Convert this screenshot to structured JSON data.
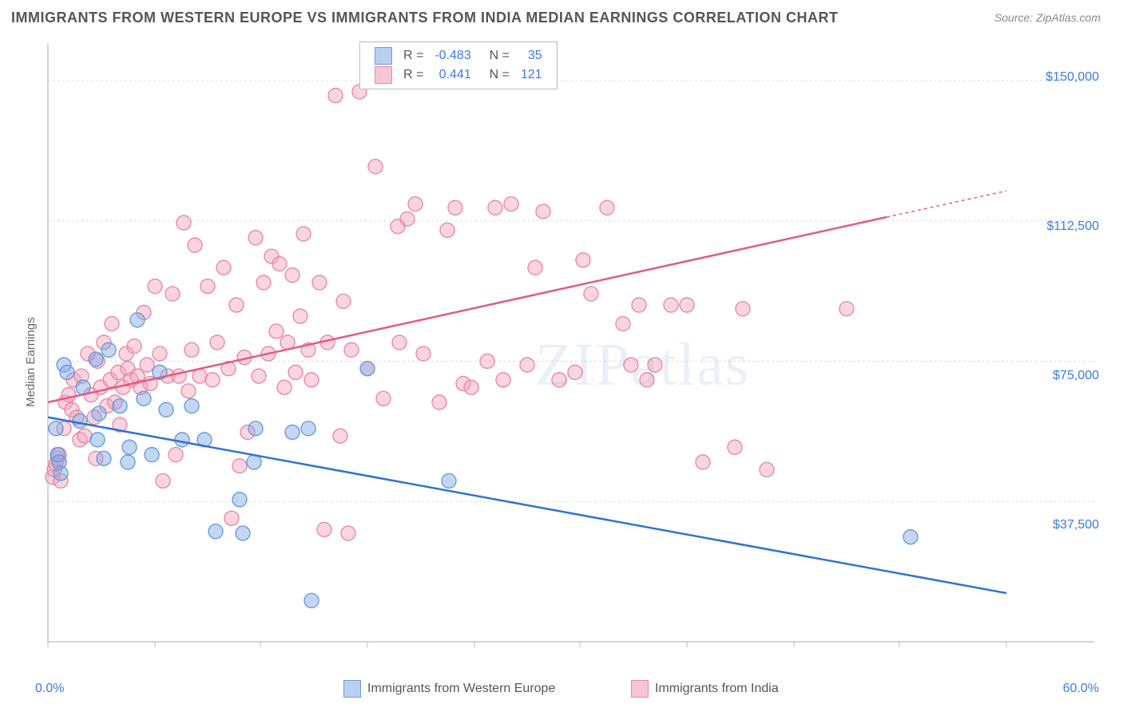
{
  "title": "IMMIGRANTS FROM WESTERN EUROPE VS IMMIGRANTS FROM INDIA MEDIAN EARNINGS CORRELATION CHART",
  "source": "Source: ZipAtlas.com",
  "watermark": "ZIPatlas",
  "ylabel": "Median Earnings",
  "chart": {
    "type": "scatter",
    "xlim": [
      0,
      60
    ],
    "ylim": [
      0,
      160000
    ],
    "xtick_positions": [
      0,
      6.7,
      13.3,
      20,
      26.7,
      33.3,
      40,
      46.7,
      53.3,
      60
    ],
    "xtick_labels": {
      "first": "0.0%",
      "last": "60.0%"
    },
    "ytick_grid": [
      37500,
      75000,
      112500,
      150000
    ],
    "ytick_labels": [
      "$37,500",
      "$75,000",
      "$112,500",
      "$150,000"
    ],
    "grid_color": "#dddddd",
    "axis_color": "#bbbbbb",
    "background": "#ffffff",
    "marker_radius": 9,
    "marker_stroke_width": 1.4,
    "series": [
      {
        "name": "Immigrants from Western Europe",
        "legend_label": "Immigrants from Western Europe",
        "fill": "rgba(122,167,229,0.45)",
        "stroke": "#6a9bde",
        "swatch_fill": "#b9d0f0",
        "swatch_stroke": "#6a9bde",
        "r_value": "-0.483",
        "n_value": "35",
        "trend": {
          "x1": 0,
          "y1": 60000,
          "x2": 60,
          "y2": 13000,
          "color": "#2f74d0",
          "width": 2.5
        },
        "points": [
          [
            0.5,
            57000
          ],
          [
            0.6,
            50000
          ],
          [
            0.7,
            48000
          ],
          [
            0.8,
            45000
          ],
          [
            1.0,
            74000
          ],
          [
            1.2,
            72000
          ],
          [
            2.0,
            59000
          ],
          [
            2.2,
            68000
          ],
          [
            3.0,
            75500
          ],
          [
            3.1,
            54000
          ],
          [
            3.2,
            61000
          ],
          [
            3.5,
            49000
          ],
          [
            3.8,
            78000
          ],
          [
            4.5,
            63000
          ],
          [
            5.0,
            48000
          ],
          [
            5.1,
            52000
          ],
          [
            5.6,
            86000
          ],
          [
            6.0,
            65000
          ],
          [
            6.5,
            50000
          ],
          [
            7.0,
            72000
          ],
          [
            7.4,
            62000
          ],
          [
            8.4,
            54000
          ],
          [
            9.0,
            63000
          ],
          [
            9.8,
            54000
          ],
          [
            10.5,
            29500
          ],
          [
            12.0,
            38000
          ],
          [
            12.2,
            29000
          ],
          [
            12.9,
            48000
          ],
          [
            13.0,
            57000
          ],
          [
            15.3,
            56000
          ],
          [
            16.3,
            57000
          ],
          [
            16.5,
            11000
          ],
          [
            20.0,
            73000
          ],
          [
            25.1,
            43000
          ],
          [
            54.0,
            28000
          ]
        ]
      },
      {
        "name": "Immigrants from India",
        "legend_label": "Immigrants from India",
        "fill": "rgba(244,161,186,0.45)",
        "stroke": "#e88aa8",
        "swatch_fill": "#f7c5d4",
        "swatch_stroke": "#e88aa8",
        "r_value": "0.441",
        "n_value": "121",
        "trend": {
          "x1": 0,
          "y1": 64000,
          "x2": 52.5,
          "y2": 113500,
          "color": "#e35a84",
          "width": 2.5,
          "dash_ext": {
            "x1": 52.5,
            "y1": 113500,
            "x2": 60,
            "y2": 120500
          }
        },
        "points": [
          [
            0.3,
            44000
          ],
          [
            0.4,
            46000
          ],
          [
            0.5,
            47500
          ],
          [
            0.6,
            49000
          ],
          [
            0.7,
            50000
          ],
          [
            0.8,
            43000
          ],
          [
            1.0,
            57000
          ],
          [
            1.1,
            64000
          ],
          [
            1.3,
            66000
          ],
          [
            1.5,
            62000
          ],
          [
            1.6,
            70000
          ],
          [
            1.8,
            60000
          ],
          [
            2.0,
            54000
          ],
          [
            2.1,
            71000
          ],
          [
            2.3,
            55000
          ],
          [
            2.5,
            77000
          ],
          [
            2.7,
            66000
          ],
          [
            2.9,
            60000
          ],
          [
            3.0,
            49000
          ],
          [
            3.1,
            75000
          ],
          [
            3.3,
            68000
          ],
          [
            3.5,
            80000
          ],
          [
            3.7,
            63000
          ],
          [
            3.9,
            70000
          ],
          [
            4.0,
            85000
          ],
          [
            4.2,
            64000
          ],
          [
            4.4,
            72000
          ],
          [
            4.5,
            58000
          ],
          [
            4.7,
            68000
          ],
          [
            4.9,
            77000
          ],
          [
            5.0,
            73000
          ],
          [
            5.2,
            70000
          ],
          [
            5.4,
            79000
          ],
          [
            5.6,
            71000
          ],
          [
            5.8,
            68000
          ],
          [
            6.0,
            88000
          ],
          [
            6.2,
            74000
          ],
          [
            6.4,
            69000
          ],
          [
            6.7,
            95000
          ],
          [
            7.0,
            77000
          ],
          [
            7.2,
            43000
          ],
          [
            7.5,
            71000
          ],
          [
            7.8,
            93000
          ],
          [
            8.0,
            50000
          ],
          [
            8.2,
            71000
          ],
          [
            8.5,
            112000
          ],
          [
            8.8,
            67000
          ],
          [
            9.0,
            78000
          ],
          [
            9.2,
            106000
          ],
          [
            9.5,
            71000
          ],
          [
            10.0,
            95000
          ],
          [
            10.3,
            70000
          ],
          [
            10.6,
            80000
          ],
          [
            11.0,
            100000
          ],
          [
            11.3,
            73000
          ],
          [
            11.5,
            33000
          ],
          [
            11.8,
            90000
          ],
          [
            12.0,
            47000
          ],
          [
            12.3,
            76000
          ],
          [
            12.5,
            56000
          ],
          [
            13.0,
            108000
          ],
          [
            13.2,
            71000
          ],
          [
            13.5,
            96000
          ],
          [
            13.8,
            77000
          ],
          [
            14.0,
            103000
          ],
          [
            14.3,
            83000
          ],
          [
            14.5,
            101000
          ],
          [
            14.8,
            68000
          ],
          [
            15.0,
            80000
          ],
          [
            15.3,
            98000
          ],
          [
            15.5,
            72000
          ],
          [
            15.8,
            87000
          ],
          [
            16.0,
            109000
          ],
          [
            16.3,
            78000
          ],
          [
            16.5,
            70000
          ],
          [
            17.0,
            96000
          ],
          [
            17.3,
            30000
          ],
          [
            17.5,
            80000
          ],
          [
            18.0,
            146000
          ],
          [
            18.3,
            55000
          ],
          [
            18.5,
            91000
          ],
          [
            18.8,
            29000
          ],
          [
            19.0,
            78000
          ],
          [
            19.5,
            147000
          ],
          [
            20.0,
            73000
          ],
          [
            20.5,
            127000
          ],
          [
            21.0,
            65000
          ],
          [
            21.9,
            111000
          ],
          [
            22.0,
            80000
          ],
          [
            22.5,
            113000
          ],
          [
            23.0,
            117000
          ],
          [
            23.5,
            77000
          ],
          [
            24.5,
            64000
          ],
          [
            25.0,
            110000
          ],
          [
            25.5,
            116000
          ],
          [
            26.0,
            69000
          ],
          [
            26.5,
            68000
          ],
          [
            27.5,
            75000
          ],
          [
            28.0,
            116000
          ],
          [
            28.5,
            70000
          ],
          [
            29.0,
            117000
          ],
          [
            30.0,
            74000
          ],
          [
            30.5,
            100000
          ],
          [
            31.0,
            115000
          ],
          [
            32.0,
            70000
          ],
          [
            33.0,
            72000
          ],
          [
            33.5,
            102000
          ],
          [
            34.0,
            93000
          ],
          [
            35.0,
            116000
          ],
          [
            36.0,
            85000
          ],
          [
            36.5,
            74000
          ],
          [
            37.0,
            90000
          ],
          [
            37.5,
            70000
          ],
          [
            38.0,
            74000
          ],
          [
            39.0,
            90000
          ],
          [
            40.0,
            90000
          ],
          [
            41.0,
            48000
          ],
          [
            43.0,
            52000
          ],
          [
            43.5,
            89000
          ],
          [
            45.0,
            46000
          ],
          [
            50.0,
            89000
          ]
        ]
      }
    ]
  }
}
